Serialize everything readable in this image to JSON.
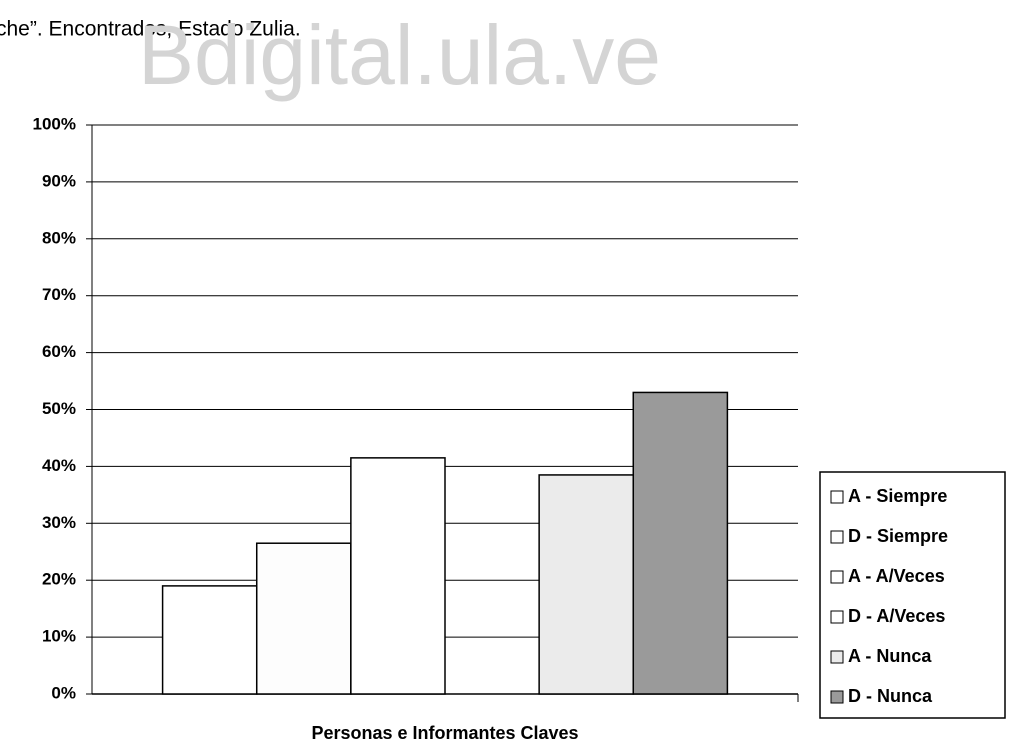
{
  "header_text": "che”. Encontrados, Estado Zulia.",
  "watermark": "Bdigital.ula.ve",
  "chart_data": {
    "type": "bar",
    "xlabel": "Personas e Informantes Claves",
    "categories": [
      null
    ],
    "series": [
      {
        "name": "A - Siempre",
        "color": "#ffffff",
        "values": [
          19
        ]
      },
      {
        "name": "D - Siempre",
        "color": "#fdfdfd",
        "values": [
          26.5
        ]
      },
      {
        "name": "A - A/Veces",
        "color": "#ffffff",
        "values": [
          41.5
        ]
      },
      {
        "name": "D - A/Veces",
        "color": "#ffffff",
        "values": [
          0
        ]
      },
      {
        "name": "A - Nunca",
        "color": "#ebebeb",
        "values": [
          38.5
        ]
      },
      {
        "name": "D - Nunca",
        "color": "#9a9a9a",
        "values": [
          53
        ]
      }
    ],
    "ylim": [
      0,
      100
    ],
    "yticks": [
      {
        "value": 0,
        "label": "0%"
      },
      {
        "value": 10,
        "label": "10%"
      },
      {
        "value": 20,
        "label": "20%"
      },
      {
        "value": 30,
        "label": "30%"
      },
      {
        "value": 40,
        "label": "40%"
      },
      {
        "value": 50,
        "label": "50%"
      },
      {
        "value": 60,
        "label": "60%"
      },
      {
        "value": 70,
        "label": "70%"
      },
      {
        "value": 80,
        "label": "80%"
      },
      {
        "value": 90,
        "label": "90%"
      },
      {
        "value": 100,
        "label": "100%"
      }
    ],
    "grid": true,
    "legend": "right"
  }
}
